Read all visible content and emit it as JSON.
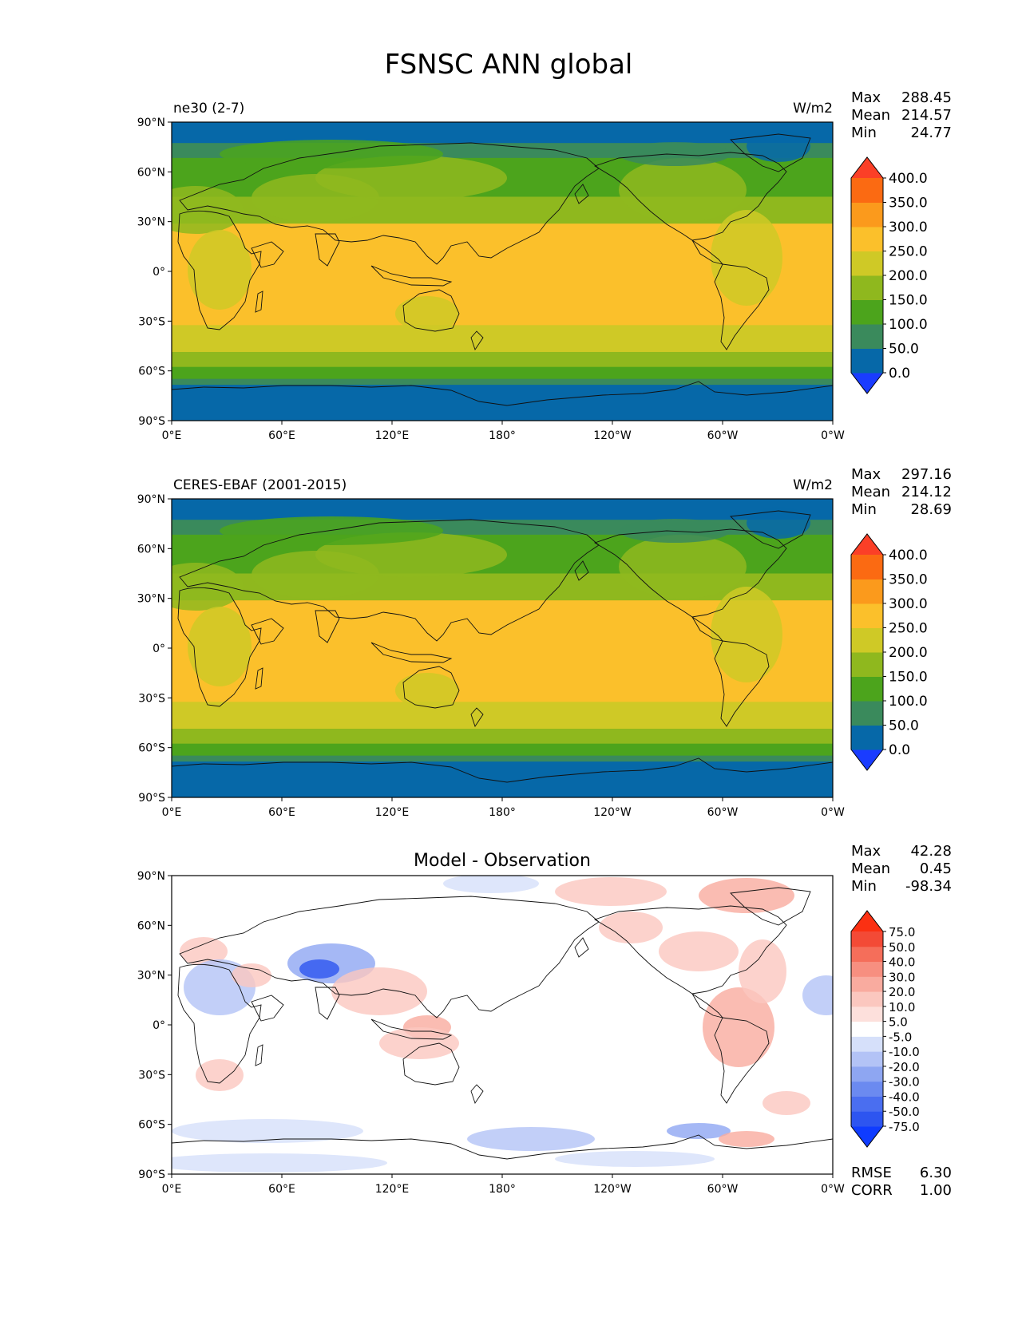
{
  "figure_title": "FSNSC ANN global",
  "lat_ticks": [
    "90°N",
    "60°N",
    "30°N",
    "0°",
    "30°S",
    "60°S",
    "90°S"
  ],
  "lon_ticks": [
    "0°E",
    "60°E",
    "120°E",
    "180°",
    "120°W",
    "60°W",
    "0°W"
  ],
  "panels": [
    {
      "left_label": "ne30 (2-7)",
      "right_label": "W/m2",
      "center_title": "",
      "stats": [
        {
          "label": "Max",
          "value": "288.45"
        },
        {
          "label": "Mean",
          "value": "214.57"
        },
        {
          "label": "Min",
          "value": "24.77"
        }
      ],
      "colorbar": {
        "colors": [
          "#1a3cff",
          "#0668a8",
          "#3a8a5c",
          "#4ca41c",
          "#8fb81e",
          "#cfc926",
          "#fbc02b",
          "#fb9a1c",
          "#fb6a12",
          "#fb3f27"
        ],
        "tick_labels": [
          "0.0",
          "50.0",
          "100.0",
          "150.0",
          "200.0",
          "250.0",
          "300.0",
          "350.0",
          "400.0"
        ]
      },
      "footer_stats": []
    },
    {
      "left_label": "CERES-EBAF (2001-2015)",
      "right_label": "W/m2",
      "center_title": "",
      "stats": [
        {
          "label": "Max",
          "value": "297.16"
        },
        {
          "label": "Mean",
          "value": "214.12"
        },
        {
          "label": "Min",
          "value": "28.69"
        }
      ],
      "colorbar": {
        "colors": [
          "#1a3cff",
          "#0668a8",
          "#3a8a5c",
          "#4ca41c",
          "#8fb81e",
          "#cfc926",
          "#fbc02b",
          "#fb9a1c",
          "#fb6a12",
          "#fb3f27"
        ],
        "tick_labels": [
          "0.0",
          "50.0",
          "100.0",
          "150.0",
          "200.0",
          "250.0",
          "300.0",
          "350.0",
          "400.0"
        ]
      },
      "footer_stats": []
    },
    {
      "left_label": "",
      "right_label": "",
      "center_title": "Model - Observation",
      "stats": [
        {
          "label": "Max",
          "value": "42.28"
        },
        {
          "label": "Mean",
          "value": "0.45"
        },
        {
          "label": "Min",
          "value": "-98.34"
        }
      ],
      "colorbar": {
        "colors": [
          "#0f3cff",
          "#2d55f0",
          "#4a6ef0",
          "#6b8af0",
          "#8ea6f2",
          "#b3c3f6",
          "#d6e0fa",
          "#ffffff",
          "#fde0dc",
          "#fbc7bf",
          "#f9ab9f",
          "#f78f80",
          "#f56e5a",
          "#f34a36",
          "#fb3012"
        ],
        "tick_labels": [
          "-75.0",
          "-50.0",
          "-40.0",
          "-30.0",
          "-20.0",
          "-10.0",
          "-5.0",
          "5.0",
          "10.0",
          "20.0",
          "30.0",
          "40.0",
          "50.0",
          "75.0"
        ]
      },
      "footer_stats": [
        {
          "label": "RMSE",
          "value": "6.30"
        },
        {
          "label": "CORR",
          "value": "1.00"
        }
      ]
    }
  ]
}
